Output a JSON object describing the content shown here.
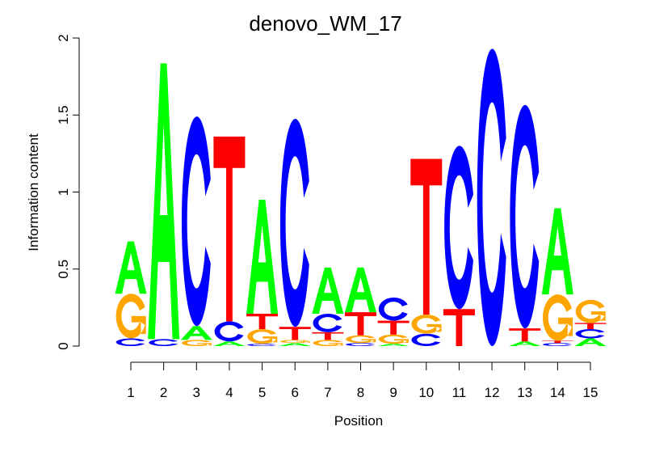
{
  "chart_data": {
    "type": "sequence-logo",
    "title": "denovo_WM_17",
    "xlabel": "Position",
    "ylabel": "Information content",
    "ylim": [
      0,
      2
    ],
    "yticks": [
      "0",
      "0.5",
      "1",
      "1.5",
      "2"
    ],
    "ytick_values": [
      0,
      0.5,
      1,
      1.5,
      2
    ],
    "xticks": [
      "1",
      "2",
      "3",
      "4",
      "5",
      "6",
      "7",
      "8",
      "9",
      "10",
      "11",
      "12",
      "13",
      "14",
      "15"
    ],
    "colors": {
      "A": "#00ff00",
      "C": "#0000ff",
      "G": "#ffa500",
      "T": "#ff0000"
    },
    "positions": [
      [
        {
          "l": "C",
          "h": 0.05
        },
        {
          "l": "G",
          "h": 0.29
        },
        {
          "l": "A",
          "h": 0.34
        }
      ],
      [
        {
          "l": "C",
          "h": 0.045
        },
        {
          "l": "A",
          "h": 1.79
        }
      ],
      [
        {
          "l": "G",
          "h": 0.04
        },
        {
          "l": "A",
          "h": 0.09
        },
        {
          "l": "C",
          "h": 1.36
        }
      ],
      [
        {
          "l": "A",
          "h": 0.03
        },
        {
          "l": "C",
          "h": 0.13
        },
        {
          "l": "T",
          "h": 1.2
        }
      ],
      [
        {
          "l": "C",
          "h": 0.015
        },
        {
          "l": "G",
          "h": 0.095
        },
        {
          "l": "T",
          "h": 0.1
        },
        {
          "l": "A",
          "h": 0.74
        }
      ],
      [
        {
          "l": "A",
          "h": 0.02
        },
        {
          "l": "G",
          "h": 0.02
        },
        {
          "l": "T",
          "h": 0.085
        },
        {
          "l": "C",
          "h": 1.35
        }
      ],
      [
        {
          "l": "G",
          "h": 0.04
        },
        {
          "l": "T",
          "h": 0.05
        },
        {
          "l": "C",
          "h": 0.12
        },
        {
          "l": "A",
          "h": 0.3
        }
      ],
      [
        {
          "l": "C",
          "h": 0.02
        },
        {
          "l": "G",
          "h": 0.05
        },
        {
          "l": "T",
          "h": 0.15
        },
        {
          "l": "A",
          "h": 0.29
        }
      ],
      [
        {
          "l": "A",
          "h": 0.015
        },
        {
          "l": "G",
          "h": 0.06
        },
        {
          "l": "T",
          "h": 0.09
        },
        {
          "l": "C",
          "h": 0.15
        }
      ],
      [
        {
          "l": "C",
          "h": 0.08
        },
        {
          "l": "G",
          "h": 0.125
        },
        {
          "l": "T",
          "h": 1.01
        }
      ],
      [
        {
          "l": "T",
          "h": 0.24
        },
        {
          "l": "C",
          "h": 1.06
        }
      ],
      [
        {
          "l": "C",
          "h": 1.93
        }
      ],
      [
        {
          "l": "A",
          "h": 0.03
        },
        {
          "l": "T",
          "h": 0.085
        },
        {
          "l": "C",
          "h": 1.45
        }
      ],
      [
        {
          "l": "C",
          "h": 0.02
        },
        {
          "l": "T",
          "h": 0.015
        },
        {
          "l": "G",
          "h": 0.3
        },
        {
          "l": "A",
          "h": 0.56
        }
      ],
      [
        {
          "l": "A",
          "h": 0.05
        },
        {
          "l": "C",
          "h": 0.06
        },
        {
          "l": "T",
          "h": 0.04
        },
        {
          "l": "G",
          "h": 0.15
        }
      ]
    ]
  }
}
